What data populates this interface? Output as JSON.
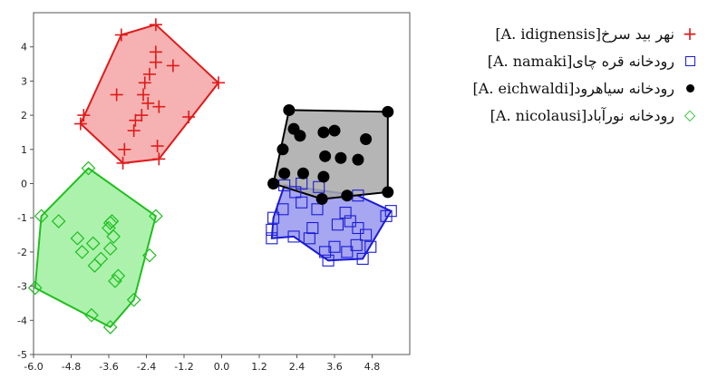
{
  "chart_data": {
    "type": "scatter",
    "xlim": [
      -6.0,
      6.0
    ],
    "ylim": [
      -5,
      5
    ],
    "xticks": [
      "-6.0",
      "-4.8",
      "-3.6",
      "-2.4",
      "-1.2",
      "0.0",
      "1.2",
      "2.4",
      "3.6",
      "4.8"
    ],
    "yticks": [
      "4",
      "3",
      "2",
      "1",
      "0",
      "-1",
      "-2",
      "-3",
      "-4",
      "-5"
    ],
    "hulls": "convex hull around each series",
    "series": [
      {
        "name": "نهر بید سرخ[A. idignensis]",
        "marker": "plus",
        "color": "#e01a1a",
        "fill": "#f4a5a5",
        "points": [
          [
            -2.1,
            4.65
          ],
          [
            -3.2,
            4.35
          ],
          [
            -4.4,
            2.0
          ],
          [
            -4.5,
            1.75
          ],
          [
            -3.1,
            1.0
          ],
          [
            -3.15,
            0.6
          ],
          [
            -2.0,
            0.72
          ],
          [
            -2.05,
            1.1
          ],
          [
            -1.05,
            1.95
          ],
          [
            -0.1,
            2.95
          ],
          [
            -1.55,
            3.45
          ],
          [
            -2.1,
            3.85
          ],
          [
            -2.1,
            3.55
          ],
          [
            -2.3,
            3.2
          ],
          [
            -2.45,
            2.95
          ],
          [
            -2.5,
            2.6
          ],
          [
            -2.35,
            2.35
          ],
          [
            -2.55,
            2.0
          ],
          [
            -2.75,
            1.85
          ],
          [
            -2.8,
            1.55
          ],
          [
            -3.35,
            2.6
          ],
          [
            -2.0,
            2.25
          ]
        ],
        "hull": [
          [
            -2.1,
            4.65
          ],
          [
            -0.1,
            2.95
          ],
          [
            -2.0,
            0.72
          ],
          [
            -3.15,
            0.6
          ],
          [
            -4.5,
            1.75
          ],
          [
            -3.2,
            4.35
          ]
        ]
      },
      {
        "name": "رودخانه قره چای[A. namaki]",
        "marker": "square",
        "color": "#1a1ad8",
        "fill": "#9696ee",
        "points": [
          [
            2.0,
            -0.05
          ],
          [
            2.55,
            0.0
          ],
          [
            3.1,
            -0.1
          ],
          [
            4.35,
            -0.35
          ],
          [
            5.4,
            -0.8
          ],
          [
            5.25,
            -0.95
          ],
          [
            4.75,
            -1.85
          ],
          [
            4.5,
            -2.2
          ],
          [
            3.4,
            -2.25
          ],
          [
            3.3,
            -2.0
          ],
          [
            2.3,
            -1.55
          ],
          [
            1.65,
            -1.0
          ],
          [
            1.6,
            -1.35
          ],
          [
            1.6,
            -1.6
          ],
          [
            1.95,
            -0.75
          ],
          [
            2.55,
            -0.55
          ],
          [
            3.05,
            -0.75
          ],
          [
            3.95,
            -0.85
          ],
          [
            4.1,
            -1.1
          ],
          [
            3.7,
            -1.2
          ],
          [
            4.35,
            -1.3
          ],
          [
            4.6,
            -1.5
          ],
          [
            2.9,
            -1.3
          ],
          [
            2.8,
            -1.6
          ],
          [
            4.3,
            -1.8
          ],
          [
            3.6,
            -1.85
          ],
          [
            4.0,
            -2.0
          ],
          [
            2.35,
            -0.25
          ]
        ],
        "hull": [
          [
            2.0,
            -0.05
          ],
          [
            4.35,
            -0.35
          ],
          [
            5.4,
            -0.8
          ],
          [
            4.5,
            -2.2
          ],
          [
            3.4,
            -2.25
          ],
          [
            2.3,
            -1.55
          ],
          [
            1.6,
            -1.6
          ],
          [
            1.65,
            -1.0
          ]
        ]
      },
      {
        "name": "رودخانه سیاهرود[A. eichwaldi]",
        "marker": "filled-circle",
        "color": "#000000",
        "fill": "#a8a8a8",
        "points": [
          [
            2.15,
            2.15
          ],
          [
            5.3,
            2.1
          ],
          [
            5.3,
            -0.25
          ],
          [
            3.2,
            -0.45
          ],
          [
            1.65,
            0.0
          ],
          [
            1.95,
            1.0
          ],
          [
            2.0,
            0.3
          ],
          [
            2.5,
            1.4
          ],
          [
            3.25,
            1.5
          ],
          [
            3.6,
            1.55
          ],
          [
            4.6,
            1.3
          ],
          [
            3.3,
            0.8
          ],
          [
            3.8,
            0.75
          ],
          [
            4.35,
            0.7
          ],
          [
            3.25,
            0.2
          ],
          [
            4.0,
            -0.35
          ],
          [
            2.6,
            0.3
          ],
          [
            2.3,
            1.6
          ]
        ],
        "hull": [
          [
            2.15,
            2.15
          ],
          [
            5.3,
            2.1
          ],
          [
            5.3,
            -0.25
          ],
          [
            3.2,
            -0.45
          ],
          [
            1.65,
            0.0
          ]
        ]
      },
      {
        "name": "رودخانه نورآباد[A. nicolausi]",
        "marker": "diamond",
        "color": "#1fbf1f",
        "fill": "#9ef09e",
        "points": [
          [
            -4.25,
            0.45
          ],
          [
            -2.1,
            -0.95
          ],
          [
            -2.3,
            -2.1
          ],
          [
            -2.8,
            -3.4
          ],
          [
            -3.55,
            -4.2
          ],
          [
            -4.15,
            -3.85
          ],
          [
            -5.95,
            -3.05
          ],
          [
            -5.75,
            -0.95
          ],
          [
            -5.2,
            -1.1
          ],
          [
            -4.6,
            -1.6
          ],
          [
            -4.45,
            -2.0
          ],
          [
            -4.1,
            -1.75
          ],
          [
            -3.55,
            -1.15
          ],
          [
            -3.6,
            -1.3
          ],
          [
            -3.45,
            -1.55
          ],
          [
            -3.55,
            -1.9
          ],
          [
            -3.85,
            -2.2
          ],
          [
            -4.05,
            -2.4
          ],
          [
            -3.3,
            -2.7
          ],
          [
            -3.4,
            -2.85
          ],
          [
            -3.5,
            -1.1
          ]
        ],
        "hull": [
          [
            -4.25,
            0.45
          ],
          [
            -2.1,
            -0.95
          ],
          [
            -2.8,
            -3.4
          ],
          [
            -3.55,
            -4.2
          ],
          [
            -5.95,
            -3.05
          ],
          [
            -5.75,
            -0.95
          ]
        ]
      }
    ]
  }
}
